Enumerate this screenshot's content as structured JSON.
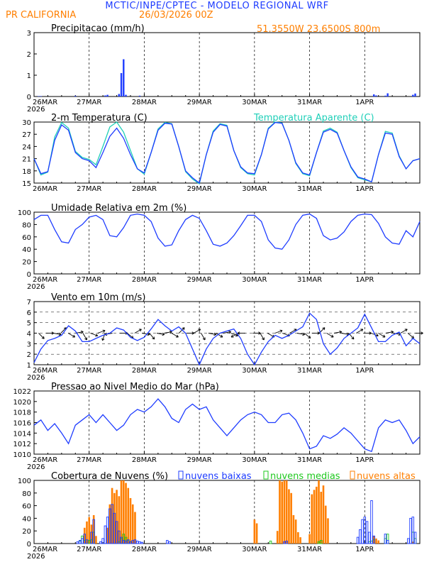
{
  "header": {
    "title": "MCTIC/INPE/CPTEC - MODELO REGIONAL WRF",
    "location": "PR CALIFORNIA",
    "run": "26/03/2026 00Z",
    "coords": "51.3550W 23.6500S 800m"
  },
  "colors": {
    "title": "#1e3cff",
    "orange": "#ff7f00",
    "blue": "#1e3cff",
    "cyan": "#1fcfb8",
    "green": "#1ec81e",
    "black": "#000000"
  },
  "x_axis": {
    "ticks": [
      "26MAR",
      "27MAR",
      "28MAR",
      "29MAR",
      "30MAR",
      "31MAR",
      "1APR"
    ],
    "year": "2026",
    "range_hours": [
      0,
      168
    ]
  },
  "chart_data": [
    {
      "id": "precip",
      "type": "bar",
      "title": "Precipitacao (mm/h)",
      "ylim": [
        0,
        3
      ],
      "yticks": [
        "0",
        "1",
        "2",
        "3"
      ],
      "unit_x": "hours since 26MAR00Z",
      "x": [
        2,
        3,
        18,
        31,
        32,
        37,
        38,
        39,
        40,
        46,
        148,
        149,
        153,
        154,
        165,
        166
      ],
      "values": [
        0.02,
        0.02,
        0.03,
        0.05,
        0.08,
        0.12,
        1.1,
        1.75,
        0.08,
        0.04,
        0.1,
        0.05,
        0.04,
        0.15,
        0.08,
        0.14
      ]
    },
    {
      "id": "temp",
      "type": "line",
      "title": "2-m Temperatura (C)",
      "legend_label": "Temperatura Aparente (C)",
      "ylim": [
        15,
        30
      ],
      "yticks": [
        "15",
        "18",
        "21",
        "24",
        "27",
        "30"
      ],
      "series": [
        {
          "name": "2-m Temperatura (C)",
          "x": [
            0,
            3,
            6,
            9,
            12,
            15,
            18,
            21,
            24,
            27,
            30,
            33,
            36,
            39,
            42,
            45,
            48,
            51,
            54,
            57,
            60,
            63,
            66,
            69,
            72,
            75,
            78,
            81,
            84,
            87,
            90,
            93,
            96,
            99,
            102,
            105,
            108,
            111,
            114,
            117,
            120,
            123,
            126,
            129,
            132,
            135,
            138,
            141,
            144,
            147,
            150,
            153,
            156,
            159,
            162,
            165,
            168
          ],
          "values": [
            21,
            17.3,
            17.8,
            25.5,
            29.3,
            28,
            22.5,
            21,
            20.5,
            18.8,
            22.5,
            26.5,
            28.5,
            26,
            22,
            18.5,
            17.5,
            22.5,
            28,
            29.7,
            29.5,
            24,
            18,
            16.3,
            15,
            22,
            27.5,
            29.4,
            29,
            23,
            19,
            17.5,
            17.3,
            22,
            28.3,
            29.9,
            29.7,
            25.5,
            20,
            17.5,
            17,
            22.5,
            27.5,
            28.2,
            27.3,
            23,
            19,
            16.5,
            16,
            15.3,
            22,
            27.3,
            27,
            21.5,
            18.5,
            20.5,
            21
          ]
        },
        {
          "name": "Temperatura Aparente (C)",
          "x": [
            0,
            3,
            6,
            9,
            12,
            15,
            18,
            21,
            24,
            27,
            30,
            33,
            36,
            39,
            42,
            45,
            48,
            51,
            54,
            57,
            60,
            63,
            66,
            69,
            72,
            75,
            78,
            81,
            84,
            87,
            90,
            93,
            96,
            99,
            102,
            105,
            108,
            111,
            114,
            117,
            120,
            123,
            126,
            129,
            132,
            135,
            138,
            141,
            144,
            147,
            150,
            153,
            156,
            159,
            162,
            165,
            168
          ],
          "values": [
            21,
            17,
            17.7,
            26.3,
            29.9,
            28.5,
            22.8,
            21.3,
            20.8,
            19.5,
            24,
            28.8,
            30,
            27.5,
            23,
            18.5,
            17.2,
            22.5,
            28.3,
            29.9,
            29.6,
            24,
            17.8,
            16,
            14.8,
            22,
            27.8,
            29.6,
            29.2,
            23,
            18.8,
            17.3,
            17,
            22,
            28.5,
            30,
            29.8,
            25.5,
            19.8,
            17.3,
            16.8,
            22.5,
            27.8,
            28.5,
            27.5,
            23,
            18.8,
            16.3,
            15.8,
            15.3,
            22,
            27.7,
            27.3,
            21.7,
            18.5,
            20.5,
            21
          ]
        }
      ]
    },
    {
      "id": "rh",
      "type": "line",
      "title": "Umidade Relativa em 2m (%)",
      "ylim": [
        0,
        100
      ],
      "yticks": [
        "0",
        "20",
        "40",
        "60",
        "80",
        "100"
      ],
      "series": [
        {
          "name": "Umidade Relativa",
          "x": [
            0,
            3,
            6,
            9,
            12,
            15,
            18,
            21,
            24,
            27,
            30,
            33,
            36,
            39,
            42,
            45,
            48,
            51,
            54,
            57,
            60,
            63,
            66,
            69,
            72,
            75,
            78,
            81,
            84,
            87,
            90,
            93,
            96,
            99,
            102,
            105,
            108,
            111,
            114,
            117,
            120,
            123,
            126,
            129,
            132,
            135,
            138,
            141,
            144,
            147,
            150,
            153,
            156,
            159,
            162,
            165,
            168
          ],
          "values": [
            88,
            95,
            95,
            72,
            52,
            50,
            72,
            80,
            92,
            95,
            88,
            62,
            60,
            75,
            95,
            97,
            95,
            85,
            58,
            45,
            47,
            70,
            88,
            95,
            90,
            70,
            48,
            45,
            50,
            62,
            78,
            95,
            95,
            85,
            55,
            42,
            40,
            55,
            80,
            95,
            97,
            90,
            62,
            55,
            58,
            68,
            85,
            95,
            97,
            96,
            82,
            60,
            50,
            48,
            70,
            60,
            85
          ]
        }
      ]
    },
    {
      "id": "wind",
      "type": "line",
      "title": "Vento em 10m (m/s)",
      "ylim": [
        1,
        7
      ],
      "yticks": [
        "1",
        "2",
        "3",
        "4",
        "5",
        "6",
        "7"
      ],
      "series": [
        {
          "name": "Vento em 10m",
          "x": [
            0,
            3,
            6,
            9,
            12,
            15,
            18,
            21,
            24,
            27,
            30,
            33,
            36,
            39,
            42,
            45,
            48,
            51,
            54,
            57,
            60,
            63,
            66,
            69,
            72,
            75,
            78,
            81,
            84,
            87,
            90,
            93,
            96,
            99,
            102,
            105,
            108,
            111,
            114,
            117,
            120,
            123,
            126,
            129,
            132,
            135,
            138,
            141,
            144,
            147,
            150,
            153,
            156,
            159,
            162,
            165,
            168
          ],
          "values": [
            1.2,
            2.5,
            3.3,
            3.5,
            3.8,
            4.7,
            4.2,
            3.2,
            3.2,
            3.5,
            3.8,
            4.0,
            4.5,
            4.3,
            3.6,
            3.3,
            3.6,
            4.4,
            5.3,
            4.7,
            4.2,
            4.6,
            4.0,
            2.5,
            1.0,
            2.5,
            3.5,
            4.0,
            4.2,
            4.4,
            3.5,
            2.0,
            1.0,
            2.2,
            3.2,
            3.8,
            3.5,
            3.8,
            4.2,
            4.6,
            5.9,
            5.3,
            3.0,
            2.0,
            2.6,
            3.5,
            4.0,
            4.5,
            5.8,
            4.5,
            3.2,
            3.2,
            3.8,
            4.1,
            2.8,
            3.5,
            3.0
          ]
        }
      ],
      "barbs": {
        "speed": 4,
        "direction_from_deg": [
          135,
          90,
          100,
          45,
          120,
          80,
          150,
          110,
          70,
          200,
          260,
          90,
          130,
          60,
          100,
          140,
          100,
          80,
          120,
          45,
          90,
          60,
          150,
          100,
          120,
          80,
          110,
          240,
          270,
          90,
          150,
          120,
          70,
          110,
          60,
          100,
          130,
          90,
          45,
          120,
          80,
          100,
          140,
          60,
          90,
          110,
          120,
          80,
          100,
          60,
          130,
          90
        ]
      }
    },
    {
      "id": "pressure",
      "type": "line",
      "title": "Pressao ao Nivel Medio do Mar (hPa)",
      "ylim": [
        1010,
        1022
      ],
      "yticks": [
        "1010",
        "1012",
        "1014",
        "1016",
        "1018",
        "1020",
        "1022"
      ],
      "series": [
        {
          "name": "Pressao",
          "x": [
            0,
            3,
            6,
            9,
            12,
            15,
            18,
            21,
            24,
            27,
            30,
            33,
            36,
            39,
            42,
            45,
            48,
            51,
            54,
            57,
            60,
            63,
            66,
            69,
            72,
            75,
            78,
            81,
            84,
            87,
            90,
            93,
            96,
            99,
            102,
            105,
            108,
            111,
            114,
            117,
            120,
            123,
            126,
            129,
            132,
            135,
            138,
            141,
            144,
            147,
            150,
            153,
            156,
            159,
            162,
            165,
            168
          ],
          "values": [
            1015.5,
            1016.5,
            1014.5,
            1015.8,
            1014.0,
            1012.0,
            1015.5,
            1016.5,
            1017.5,
            1016.0,
            1017.5,
            1016.0,
            1014.5,
            1015.5,
            1017.5,
            1018.5,
            1018.0,
            1019.0,
            1020.5,
            1019.0,
            1016.8,
            1016.0,
            1018.5,
            1019.5,
            1018.5,
            1019.0,
            1016.5,
            1015.0,
            1013.5,
            1015.0,
            1016.5,
            1017.5,
            1018.0,
            1017.5,
            1016.0,
            1016.0,
            1017.5,
            1017.8,
            1016.5,
            1014.0,
            1011.0,
            1011.5,
            1013.5,
            1013.0,
            1013.8,
            1015.0,
            1014.0,
            1012.5,
            1011.0,
            1010.5,
            1015.0,
            1016.5,
            1016.0,
            1016.5,
            1014.5,
            1012.0,
            1013.3
          ]
        }
      ]
    },
    {
      "id": "clouds",
      "type": "bar",
      "title": "Cobertura de Nuvens (%)",
      "ylim": [
        0,
        100
      ],
      "yticks": [
        "0",
        "20",
        "40",
        "60",
        "80",
        "100"
      ],
      "legend": [
        "nuvens baixas",
        "nuvens medias",
        "nuvens altas"
      ],
      "series": [
        {
          "name": "nuvens baixas",
          "x": [
            19,
            20,
            21,
            22,
            23,
            25,
            26,
            29,
            30,
            31,
            32,
            33,
            34,
            35,
            36,
            37,
            38,
            39,
            40,
            41,
            42,
            43,
            44,
            45,
            46,
            47,
            58,
            59,
            109,
            110,
            141,
            142,
            143,
            144,
            145,
            146,
            147,
            148,
            153,
            154,
            163,
            164,
            165,
            166
          ],
          "values": [
            3,
            5,
            8,
            15,
            6,
            18,
            38,
            3,
            8,
            28,
            42,
            55,
            62,
            48,
            35,
            20,
            10,
            5,
            4,
            6,
            3,
            5,
            6,
            4,
            3,
            2,
            5,
            3,
            3,
            4,
            10,
            22,
            38,
            42,
            35,
            18,
            68,
            12,
            15,
            5,
            8,
            40,
            42,
            18
          ]
        },
        {
          "name": "nuvens medias",
          "x": [
            20,
            21,
            22,
            24,
            25,
            26,
            37,
            38,
            39,
            40,
            41,
            42,
            103,
            124,
            125,
            146,
            147,
            148,
            153,
            154,
            165,
            166
          ],
          "values": [
            4,
            12,
            5,
            5,
            6,
            18,
            3,
            8,
            15,
            10,
            5,
            3,
            4,
            3,
            5,
            3,
            4,
            6,
            8,
            15,
            18,
            8
          ]
        },
        {
          "name": "nuvens altas",
          "x": [
            22,
            23,
            24,
            25,
            26,
            27,
            32,
            33,
            34,
            35,
            36,
            37,
            38,
            39,
            40,
            41,
            42,
            43,
            44,
            96,
            97,
            106,
            107,
            108,
            109,
            110,
            111,
            112,
            113,
            114,
            115,
            116,
            120,
            121,
            122,
            123,
            124,
            125,
            126,
            127,
            128,
            148,
            149,
            150,
            165
          ],
          "values": [
            25,
            35,
            42,
            30,
            45,
            12,
            25,
            62,
            88,
            80,
            85,
            75,
            100,
            100,
            96,
            88,
            72,
            62,
            50,
            38,
            32,
            20,
            100,
            98,
            100,
            100,
            86,
            80,
            45,
            38,
            18,
            10,
            15,
            78,
            85,
            90,
            100,
            82,
            92,
            60,
            40,
            12,
            8,
            5,
            3
          ]
        }
      ]
    }
  ]
}
